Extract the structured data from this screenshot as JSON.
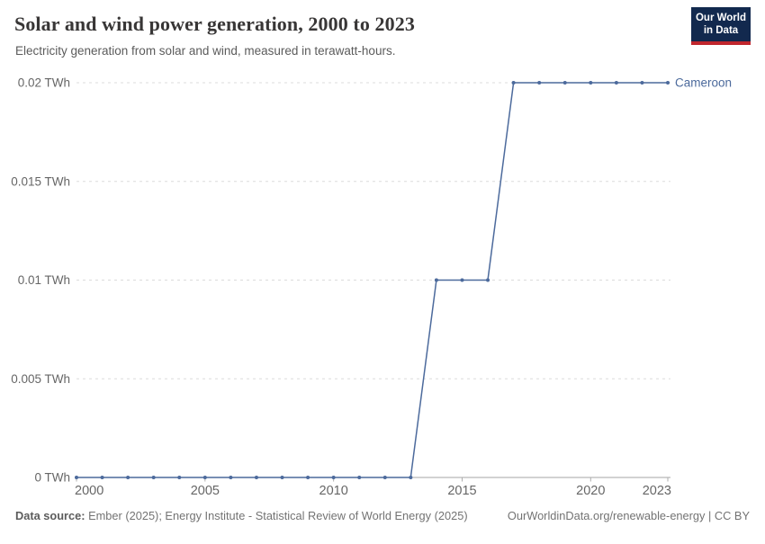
{
  "header": {
    "logo": {
      "line1": "Our World",
      "line2": "in Data",
      "bg_color": "#12294e",
      "accent_color": "#c0262d",
      "text_color": "#ffffff"
    }
  },
  "chart_data": {
    "type": "line",
    "title": "Solar and wind power generation, 2000 to 2023",
    "subtitle": "Electricity generation from solar and wind, measured in terawatt-hours.",
    "x": [
      2000,
      2001,
      2002,
      2003,
      2004,
      2005,
      2006,
      2007,
      2008,
      2009,
      2010,
      2011,
      2012,
      2013,
      2014,
      2015,
      2016,
      2017,
      2018,
      2019,
      2020,
      2021,
      2022,
      2023
    ],
    "series": [
      {
        "name": "Cameroon",
        "color": "#4c6a9c",
        "values": [
          0,
          0,
          0,
          0,
          0,
          0,
          0,
          0,
          0,
          0,
          0,
          0,
          0,
          0,
          0.01,
          0.01,
          0.01,
          0.02,
          0.02,
          0.02,
          0.02,
          0.02,
          0.02,
          0.02
        ]
      }
    ],
    "x_ticks": [
      2000,
      2005,
      2010,
      2015,
      2020,
      2023
    ],
    "y_ticks": [
      {
        "value": 0,
        "label": "0 TWh"
      },
      {
        "value": 0.005,
        "label": "0.005 TWh"
      },
      {
        "value": 0.01,
        "label": "0.01 TWh"
      },
      {
        "value": 0.015,
        "label": "0.015 TWh"
      },
      {
        "value": 0.02,
        "label": "0.02 TWh"
      }
    ],
    "xlim": [
      2000,
      2023
    ],
    "ylim": [
      0,
      0.02
    ],
    "grid": "dashed-horizontal",
    "marker": "dot",
    "legend_position": "end-of-line",
    "colors": {
      "grid": "#dcdcdc",
      "axis_line": "#a5a5a5",
      "tick_mark": "#adadad",
      "tick_text": "#666666"
    }
  },
  "footer": {
    "datasource_label": "Data source:",
    "datasource_text": " Ember (2025); Energy Institute - Statistical Review of World Energy (2025)",
    "link_text": "OurWorldinData.org/renewable-energy | CC BY"
  }
}
